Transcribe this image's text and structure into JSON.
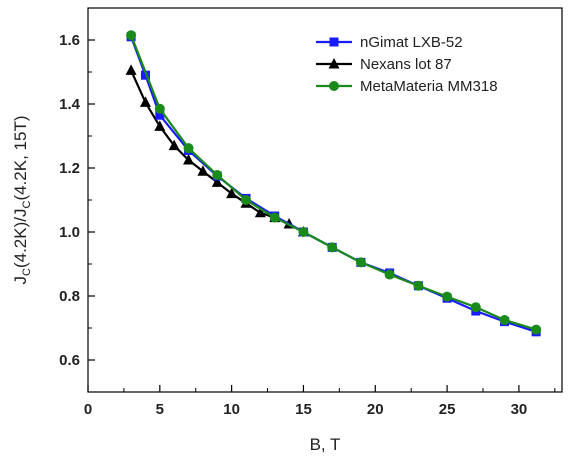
{
  "chart_data": {
    "type": "line",
    "xlabel": "B, T",
    "ylabel_parts": {
      "j1": "J",
      "s1": "C",
      "m1": "(4.2K)/J",
      "s2": "C",
      "m2": "(4.2K, 15T)"
    },
    "xlim": [
      0,
      33
    ],
    "ylim": [
      0.5,
      1.7
    ],
    "xticks": [
      0,
      5,
      10,
      15,
      20,
      25,
      30
    ],
    "yticks": [
      0.6,
      0.8,
      1.0,
      1.2,
      1.4,
      1.6
    ],
    "xtick_labels": [
      "0",
      "5",
      "10",
      "15",
      "20",
      "25",
      "30"
    ],
    "ytick_labels": [
      "0.6",
      "0.8",
      "1.0",
      "1.2",
      "1.4",
      "1.6"
    ],
    "legend_position": "top-right",
    "grid": false,
    "series": [
      {
        "name": "nGimat LXB-52",
        "color": "#1a1aff",
        "marker": "square",
        "x": [
          3,
          4,
          5,
          7,
          9,
          11,
          13,
          15,
          17,
          19,
          21,
          23,
          25,
          27,
          29,
          31.2
        ],
        "y": [
          1.61,
          1.49,
          1.365,
          1.255,
          1.175,
          1.105,
          1.05,
          1.0,
          0.952,
          0.905,
          0.872,
          0.832,
          0.793,
          0.753,
          0.72,
          0.688
        ]
      },
      {
        "name": "Nexans lot 87",
        "color": "#000000",
        "marker": "triangle",
        "x": [
          3,
          4,
          5,
          6,
          7,
          8,
          9,
          10,
          11,
          12,
          13,
          14,
          15
        ],
        "y": [
          1.505,
          1.405,
          1.33,
          1.27,
          1.225,
          1.19,
          1.155,
          1.12,
          1.09,
          1.06,
          1.045,
          1.025,
          1.0
        ]
      },
      {
        "name": "MetaMateria MM318",
        "color": "#1a8a1a",
        "marker": "circle",
        "x": [
          3,
          5,
          7,
          9,
          11,
          13,
          15,
          17,
          19,
          21,
          23,
          25,
          27,
          29,
          31.2
        ],
        "y": [
          1.615,
          1.385,
          1.262,
          1.178,
          1.1,
          1.045,
          1.0,
          0.952,
          0.905,
          0.867,
          0.832,
          0.798,
          0.765,
          0.725,
          0.695
        ]
      }
    ]
  }
}
